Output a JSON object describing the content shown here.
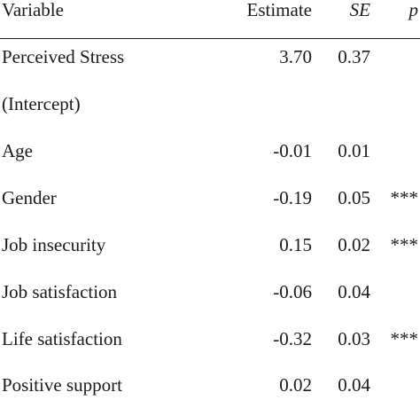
{
  "header": {
    "variable": "Variable",
    "estimate": "Estimate",
    "se": "SE",
    "p": "p"
  },
  "rows": [
    {
      "variable": "Perceived Stress",
      "estimate": "3.70",
      "se": "0.37",
      "p": ""
    },
    {
      "variable": "(Intercept)",
      "estimate": "",
      "se": "",
      "p": ""
    },
    {
      "variable": "Age",
      "estimate": "-0.01",
      "se": "0.01",
      "p": ""
    },
    {
      "variable": "Gender",
      "estimate": "-0.19",
      "se": "0.05",
      "p": "***"
    },
    {
      "variable": "Job insecurity",
      "estimate": "0.15",
      "se": "0.02",
      "p": "***"
    },
    {
      "variable": "Job satisfaction",
      "estimate": "-0.06",
      "se": "0.04",
      "p": ""
    },
    {
      "variable": "Life satisfaction",
      "estimate": "-0.32",
      "se": "0.03",
      "p": "***"
    },
    {
      "variable": "Positive support",
      "estimate": "0.02",
      "se": "0.04",
      "p": ""
    }
  ]
}
